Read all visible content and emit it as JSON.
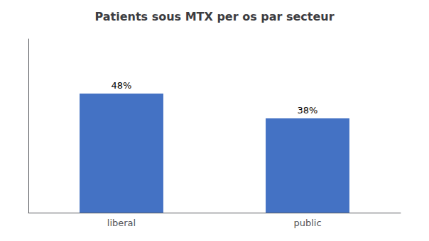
{
  "chart_data": {
    "type": "bar",
    "title": "Patients sous MTX per os par secteur",
    "categories": [
      "liberal",
      "public"
    ],
    "values": [
      48,
      38
    ],
    "value_labels": [
      "48%",
      "38%"
    ],
    "color": "#4472C4",
    "ylim": [
      0,
      70
    ],
    "grid": false,
    "tick_labels": "x",
    "data_labels": true
  }
}
